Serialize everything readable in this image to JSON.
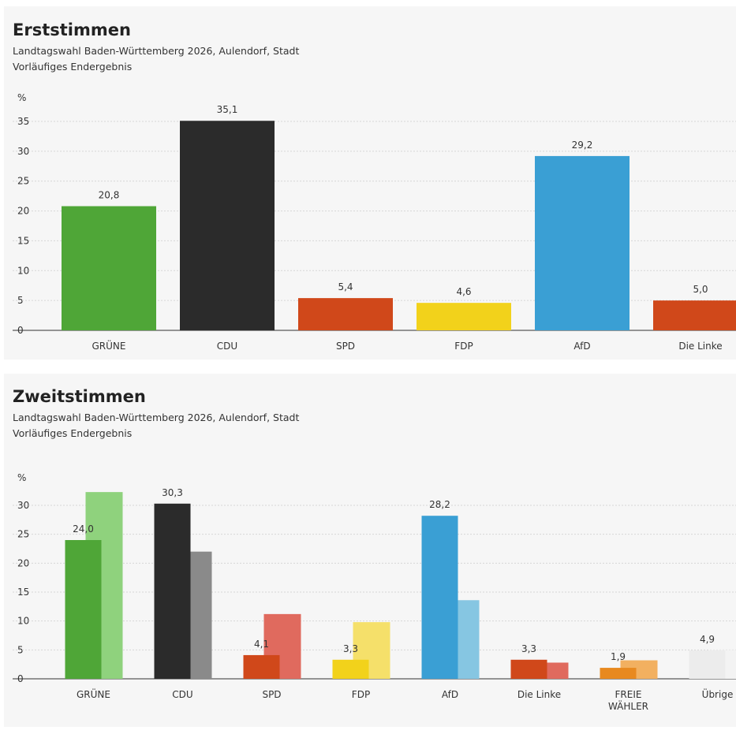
{
  "chart_data": [
    {
      "type": "bar",
      "title": "Erststimmen",
      "subtitle": [
        "Landtagswahl Baden-Württemberg 2026, Aulendorf, Stadt",
        "Vorläufiges Endergebnis"
      ],
      "y_label": "%",
      "categories": [
        "GRÜNE",
        "CDU",
        "SPD",
        "FDP",
        "AfD",
        "Die Linke"
      ],
      "series": [
        {
          "colors": [
            "#4fa637",
            "#2b2b2b",
            "#d0481a",
            "#f2d21b",
            "#3a9fd4",
            "#d0481a"
          ],
          "values": [
            20.8,
            35.1,
            5.4,
            4.6,
            29.2,
            5.0
          ],
          "value_labels": [
            "20,8",
            "35,1",
            "5,4",
            "4,6",
            "29,2",
            "5,0"
          ]
        }
      ],
      "ylim": [
        0,
        36
      ],
      "yticks": [
        0,
        5,
        10,
        15,
        20,
        25,
        30,
        35
      ],
      "grid": true
    },
    {
      "type": "grouped_bar",
      "title": "Zweitstimmen",
      "subtitle": [
        "Landtagswahl Baden-Württemberg 2026, Aulendorf, Stadt",
        "Vorläufiges Endergebnis"
      ],
      "y_label": "%",
      "categories": [
        "GRÜNE",
        "CDU",
        "SPD",
        "FDP",
        "AfD",
        "Die Linke",
        "FREIE WÄHLER",
        "Übrige"
      ],
      "series": [
        {
          "colors": [
            "#4fa637",
            "#2b2b2b",
            "#d0481a",
            "#f2d21b",
            "#3a9fd4",
            "#d0481a",
            "#e8891f",
            "#ececec"
          ],
          "values": [
            24.0,
            30.3,
            4.1,
            3.3,
            28.2,
            3.3,
            1.9,
            4.9
          ],
          "value_labels": [
            "24,0",
            "30,3",
            "4,1",
            "3,3",
            "28,2",
            "3,3",
            "1,9",
            "4,9"
          ]
        },
        {
          "colors": [
            "#8fd27d",
            "#8a8a8a",
            "#e06a5e",
            "#f5e06a",
            "#86c6e2",
            "#e06a5e",
            "#f2b060",
            "#f3f3f3"
          ],
          "values": [
            32.3,
            22.0,
            11.2,
            9.8,
            13.6,
            2.8,
            3.2,
            5.0
          ]
        }
      ],
      "ylim": [
        0,
        33
      ],
      "yticks": [
        0,
        5,
        10,
        15,
        20,
        25,
        30
      ],
      "grid": true
    }
  ]
}
